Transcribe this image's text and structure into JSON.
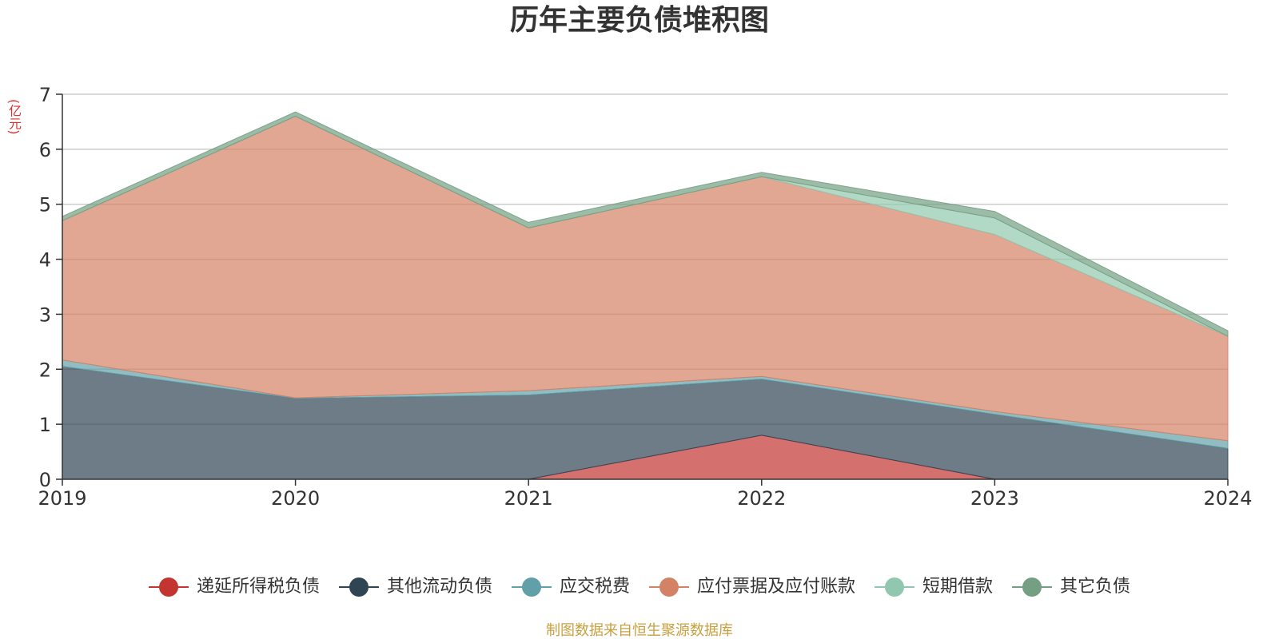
{
  "chart_data": {
    "type": "area",
    "stacked": true,
    "title": "历年主要负债堆积图",
    "ylabel": "(亿元)",
    "x": [
      "2019",
      "2020",
      "2021",
      "2022",
      "2023",
      "2024"
    ],
    "ylim": [
      0,
      7
    ],
    "yticks": [
      "0",
      "1",
      "2",
      "3",
      "4",
      "5",
      "6",
      "7"
    ],
    "grid": true,
    "legend_position": "bottom",
    "series": [
      {
        "name": "递延所得税负债",
        "color": "#c23531",
        "values": [
          0,
          0,
          0,
          0.8,
          0,
          0
        ]
      },
      {
        "name": "其他流动负债",
        "color": "#2f4554",
        "values": [
          2.05,
          1.47,
          1.53,
          1.02,
          1.18,
          0.56
        ]
      },
      {
        "name": "应交税费",
        "color": "#61a0a8",
        "values": [
          0.12,
          0.01,
          0.08,
          0.05,
          0.05,
          0.14
        ]
      },
      {
        "name": "应付票据及应付账款",
        "color": "#d48265",
        "values": [
          2.53,
          5.12,
          2.96,
          3.63,
          3.22,
          1.9
        ]
      },
      {
        "name": "短期借款",
        "color": "#91c7ae",
        "values": [
          0,
          0,
          0,
          0,
          0.3,
          0
        ]
      },
      {
        "name": "其它负债",
        "color": "#749f83",
        "values": [
          0.08,
          0.08,
          0.1,
          0.08,
          0.12,
          0.1
        ]
      }
    ]
  },
  "source": "制图数据来自恒生聚源数据库"
}
